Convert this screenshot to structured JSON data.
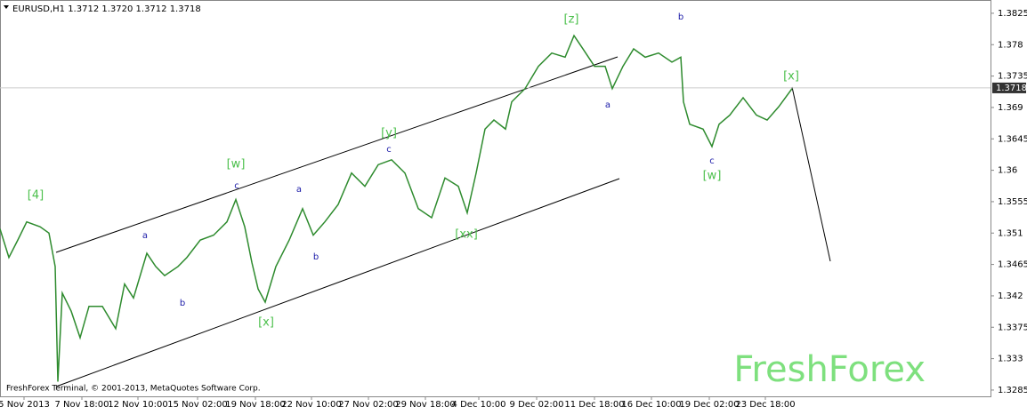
{
  "chart_data": {
    "type": "line",
    "title": "EURUSD,H1  1.3712 1.3720 1.3712 1.3718",
    "footer": "FreshForex Terminal, © 2001-2013, MetaQuotes Software Corp.",
    "watermark": "FreshForex",
    "x": [
      0,
      10,
      20,
      30,
      45,
      55,
      62,
      65,
      70,
      80,
      90,
      100,
      115,
      130,
      140,
      150,
      165,
      175,
      185,
      200,
      210,
      225,
      240,
      255,
      265,
      275,
      283,
      290,
      298,
      310,
      325,
      340,
      352,
      365,
      380,
      395,
      410,
      425,
      440,
      455,
      470,
      485,
      500,
      515,
      525,
      535,
      545,
      555,
      568,
      575,
      590,
      605,
      620,
      635,
      645,
      655,
      668,
      680,
      688,
      700,
      712,
      725,
      740,
      755,
      765,
      768,
      775,
      790,
      800,
      808,
      820,
      835,
      850,
      862,
      875,
      890
    ],
    "series": [
      {
        "name": "EURUSD,H1",
        "color": "#2e8b2e",
        "values": [
          1.3516,
          1.3475,
          1.35,
          1.3526,
          1.3519,
          1.351,
          1.3462,
          1.3297,
          1.3424,
          1.3398,
          1.336,
          1.3405,
          1.3405,
          1.3373,
          1.3437,
          1.3417,
          1.3481,
          1.3462,
          1.3449,
          1.3462,
          1.3475,
          1.35,
          1.3507,
          1.3526,
          1.3558,
          1.3519,
          1.3468,
          1.343,
          1.3411,
          1.3462,
          1.35,
          1.3545,
          1.3507,
          1.3526,
          1.3551,
          1.3596,
          1.3577,
          1.3608,
          1.3615,
          1.3596,
          1.3545,
          1.3532,
          1.3589,
          1.3577,
          1.3539,
          1.3596,
          1.3659,
          1.3672,
          1.3659,
          1.3698,
          1.3717,
          1.3749,
          1.3768,
          1.3762,
          1.3793,
          1.3774,
          1.3749,
          1.3749,
          1.3717,
          1.3749,
          1.3774,
          1.3762,
          1.3768,
          1.3755,
          1.3762,
          1.3698,
          1.3666,
          1.3659,
          1.3634,
          1.3666,
          1.3679,
          1.3704,
          1.3679,
          1.3672,
          1.3691,
          1.3717
        ]
      }
    ],
    "current_price": 1.3718,
    "xlim": [
      0,
      1113
    ],
    "xticks": [
      {
        "value": 27,
        "label": "5 Nov 2013"
      },
      {
        "value": 92,
        "label": "7 Nov 18:00"
      },
      {
        "value": 155,
        "label": "12 Nov 10:00"
      },
      {
        "value": 222,
        "label": "15 Nov 02:00"
      },
      {
        "value": 287,
        "label": "19 Nov 18:00"
      },
      {
        "value": 350,
        "label": "22 Nov 10:00"
      },
      {
        "value": 414,
        "label": "27 Nov 02:00"
      },
      {
        "value": 478,
        "label": "29 Nov 18:00"
      },
      {
        "value": 538,
        "label": "4 Dec 10:00"
      },
      {
        "value": 603,
        "label": "9 Dec 02:00"
      },
      {
        "value": 668,
        "label": "11 Dec 18:00"
      },
      {
        "value": 732,
        "label": "16 Dec 10:00"
      },
      {
        "value": 797,
        "label": "19 Dec 02:00"
      },
      {
        "value": 860,
        "label": "23 Dec 18:00"
      }
    ],
    "ylim": [
      1.3276,
      1.3844
    ],
    "yticks": [
      1.3285,
      1.333,
      1.3375,
      1.342,
      1.3465,
      1.351,
      1.3555,
      1.36,
      1.3645,
      1.369,
      1.3735,
      1.378,
      1.3825
    ],
    "annotations": [
      "[4]",
      "[w]",
      "c",
      "a",
      "b",
      "[x]",
      "a",
      "b",
      "[y]",
      "c",
      "[xx]",
      "[z]",
      "a",
      "b",
      "c",
      "[w]",
      "[x]"
    ]
  }
}
